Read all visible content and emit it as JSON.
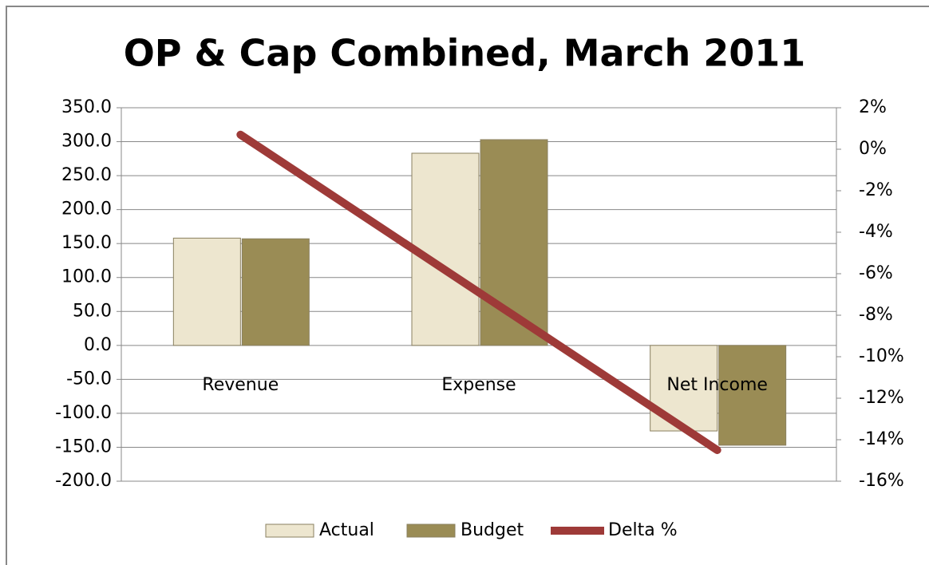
{
  "chart_data": {
    "type": "bar",
    "title": "OP & Cap Combined, March 2011",
    "categories": [
      "Revenue",
      "Expense",
      "Net Income"
    ],
    "series": [
      {
        "name": "Actual",
        "color": "#ede6cf",
        "values": [
          158,
          283,
          -126
        ]
      },
      {
        "name": "Budget",
        "color": "#9a8c55",
        "values": [
          157,
          303,
          -147
        ]
      },
      {
        "name": "Delta %",
        "color": "#9e3a38",
        "type": "line",
        "axis": "y2",
        "values": [
          0.7,
          -6.9,
          -14.5
        ]
      }
    ],
    "ylim": [
      -200,
      350
    ],
    "yticks": [
      {
        "value": -200,
        "label": "-200.0"
      },
      {
        "value": -150,
        "label": "-150.0"
      },
      {
        "value": -100,
        "label": "-100.0"
      },
      {
        "value": -50,
        "label": "-50.0"
      },
      {
        "value": 0,
        "label": "0.0"
      },
      {
        "value": 50,
        "label": "50.0"
      },
      {
        "value": 100,
        "label": "100.0"
      },
      {
        "value": 150,
        "label": "150.0"
      },
      {
        "value": 200,
        "label": "200.0"
      },
      {
        "value": 250,
        "label": "250.0"
      },
      {
        "value": 300,
        "label": "300.0"
      },
      {
        "value": 350,
        "label": "350.0"
      }
    ],
    "y2lim": [
      -16,
      2
    ],
    "y2ticks": [
      {
        "value": -16,
        "label": "-16%"
      },
      {
        "value": -14,
        "label": "-14%"
      },
      {
        "value": -12,
        "label": "-12%"
      },
      {
        "value": -10,
        "label": "-10%"
      },
      {
        "value": -8,
        "label": "-8%"
      },
      {
        "value": -6,
        "label": "-6%"
      },
      {
        "value": -4,
        "label": "-4%"
      },
      {
        "value": -2,
        "label": "-2%"
      },
      {
        "value": 0,
        "label": "0%"
      },
      {
        "value": 2,
        "label": "2%"
      }
    ],
    "grid": true,
    "legend": "bottom"
  }
}
